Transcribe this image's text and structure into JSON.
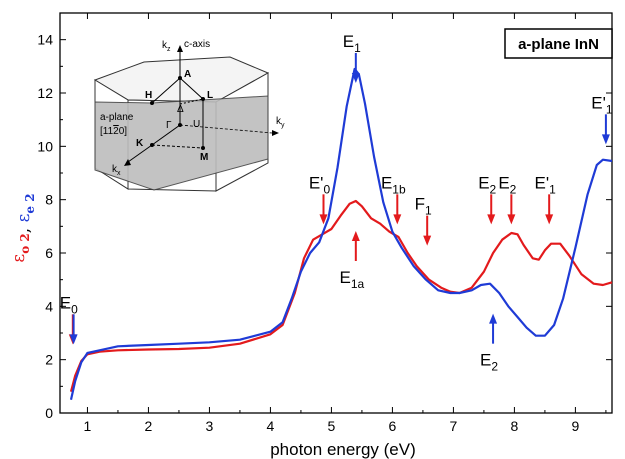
{
  "chart_data": {
    "type": "line",
    "title": "",
    "xlabel": "photon energy (eV)",
    "ylabel_parts": [
      {
        "text": "ε",
        "sub": "o 2",
        "color": "#e31a1c"
      },
      {
        "text": ", ",
        "sub": "",
        "color": "#000000"
      },
      {
        "text": "ε",
        "sub": "e 2",
        "color": "#1f3bd6"
      }
    ],
    "xlim": [
      0.55,
      9.6
    ],
    "ylim": [
      0,
      15
    ],
    "xticks": [
      1,
      2,
      3,
      4,
      5,
      6,
      7,
      8,
      9
    ],
    "yticks": [
      0,
      2,
      4,
      6,
      8,
      10,
      12,
      14
    ],
    "legend_box": "a-plane InN",
    "series": [
      {
        "color": "#e31a1c",
        "points": [
          [
            0.73,
            0.8
          ],
          [
            0.8,
            1.4
          ],
          [
            0.9,
            1.95
          ],
          [
            1.0,
            2.2
          ],
          [
            1.2,
            2.3
          ],
          [
            1.5,
            2.35
          ],
          [
            2.0,
            2.38
          ],
          [
            2.5,
            2.4
          ],
          [
            3.0,
            2.45
          ],
          [
            3.5,
            2.6
          ],
          [
            4.0,
            2.95
          ],
          [
            4.2,
            3.3
          ],
          [
            4.4,
            4.5
          ],
          [
            4.55,
            5.8
          ],
          [
            4.7,
            6.5
          ],
          [
            4.85,
            6.7
          ],
          [
            5.0,
            6.9
          ],
          [
            5.15,
            7.4
          ],
          [
            5.3,
            7.85
          ],
          [
            5.4,
            7.95
          ],
          [
            5.5,
            7.75
          ],
          [
            5.65,
            7.3
          ],
          [
            5.8,
            7.1
          ],
          [
            5.95,
            6.8
          ],
          [
            6.1,
            6.6
          ],
          [
            6.25,
            6.0
          ],
          [
            6.4,
            5.5
          ],
          [
            6.6,
            5.0
          ],
          [
            6.8,
            4.7
          ],
          [
            6.95,
            4.55
          ],
          [
            7.1,
            4.5
          ],
          [
            7.3,
            4.7
          ],
          [
            7.5,
            5.3
          ],
          [
            7.65,
            6.0
          ],
          [
            7.8,
            6.5
          ],
          [
            7.95,
            6.75
          ],
          [
            8.05,
            6.7
          ],
          [
            8.15,
            6.3
          ],
          [
            8.3,
            5.8
          ],
          [
            8.4,
            5.75
          ],
          [
            8.5,
            6.1
          ],
          [
            8.6,
            6.35
          ],
          [
            8.75,
            6.35
          ],
          [
            8.9,
            5.9
          ],
          [
            9.1,
            5.2
          ],
          [
            9.3,
            4.85
          ],
          [
            9.45,
            4.8
          ],
          [
            9.6,
            4.9
          ]
        ]
      },
      {
        "color": "#1f3bd6",
        "points": [
          [
            0.73,
            0.5
          ],
          [
            0.8,
            1.2
          ],
          [
            0.9,
            1.9
          ],
          [
            1.0,
            2.25
          ],
          [
            1.2,
            2.35
          ],
          [
            1.5,
            2.5
          ],
          [
            2.0,
            2.55
          ],
          [
            2.5,
            2.6
          ],
          [
            3.0,
            2.65
          ],
          [
            3.5,
            2.75
          ],
          [
            4.0,
            3.05
          ],
          [
            4.2,
            3.4
          ],
          [
            4.35,
            4.3
          ],
          [
            4.5,
            5.3
          ],
          [
            4.65,
            6.0
          ],
          [
            4.8,
            6.4
          ],
          [
            4.95,
            7.3
          ],
          [
            5.1,
            9.2
          ],
          [
            5.25,
            11.5
          ],
          [
            5.38,
            12.9
          ],
          [
            5.45,
            12.7
          ],
          [
            5.55,
            11.6
          ],
          [
            5.7,
            9.6
          ],
          [
            5.85,
            7.9
          ],
          [
            6.0,
            6.8
          ],
          [
            6.15,
            6.2
          ],
          [
            6.35,
            5.5
          ],
          [
            6.55,
            5.0
          ],
          [
            6.75,
            4.6
          ],
          [
            6.95,
            4.5
          ],
          [
            7.1,
            4.5
          ],
          [
            7.3,
            4.6
          ],
          [
            7.45,
            4.8
          ],
          [
            7.6,
            4.85
          ],
          [
            7.75,
            4.5
          ],
          [
            7.9,
            4.0
          ],
          [
            8.05,
            3.6
          ],
          [
            8.2,
            3.2
          ],
          [
            8.35,
            2.9
          ],
          [
            8.5,
            2.9
          ],
          [
            8.65,
            3.3
          ],
          [
            8.8,
            4.3
          ],
          [
            9.0,
            6.2
          ],
          [
            9.2,
            8.2
          ],
          [
            9.35,
            9.3
          ],
          [
            9.45,
            9.5
          ],
          [
            9.6,
            9.45
          ]
        ]
      }
    ],
    "annotations": [
      {
        "main": "E",
        "sub": "0",
        "x": 0.76,
        "y": 3.7,
        "label_above": true,
        "dir": "down",
        "color": "#e31a1c",
        "color2": "#1f3bd6"
      },
      {
        "main": "E",
        "sub": "1",
        "x": 5.4,
        "y": 13.5,
        "label_above": true,
        "dir": "down",
        "color": "#1f3bd6"
      },
      {
        "main": "E'",
        "sub": "0",
        "x": 4.87,
        "y": 8.2,
        "label_above": true,
        "dir": "down",
        "color": "#e31a1c"
      },
      {
        "main": "E",
        "sub": "1a",
        "x": 5.4,
        "y": 5.7,
        "label_above": false,
        "dir": "up",
        "color": "#e31a1c"
      },
      {
        "main": "E",
        "sub": "1b",
        "x": 6.08,
        "y": 8.2,
        "label_above": true,
        "dir": "down",
        "color": "#e31a1c"
      },
      {
        "main": "F",
        "sub": "1",
        "x": 6.57,
        "y": 7.4,
        "label_above": true,
        "dir": "down",
        "color": "#e31a1c"
      },
      {
        "main": "E",
        "sub": "2",
        "x": 7.62,
        "y": 8.2,
        "label_above": true,
        "dir": "down",
        "color": "#e31a1c"
      },
      {
        "main": "E",
        "sub": "2",
        "x": 7.95,
        "y": 8.2,
        "label_above": true,
        "dir": "down",
        "color": "#e31a1c"
      },
      {
        "main": "E'",
        "sub": "1",
        "x": 8.57,
        "y": 8.2,
        "label_above": true,
        "dir": "down",
        "color": "#e31a1c"
      },
      {
        "main": "E",
        "sub": "2",
        "x": 7.65,
        "y": 2.6,
        "label_above": false,
        "dir": "up",
        "color": "#1f3bd6"
      },
      {
        "main": "E'",
        "sub": "1",
        "x": 9.5,
        "y": 11.2,
        "label_above": true,
        "dir": "down",
        "color": "#1f3bd6"
      }
    ],
    "inset": {
      "labels": {
        "kz": "k",
        "kz_sub": "z",
        "caxis": "c-axis",
        "A": "A",
        "H": "H",
        "L": "L",
        "aplane1": "a-plane",
        "aplane2": "[11",
        "aplane2_bar": "2",
        "aplane2_end": "0]",
        "Gamma": "Γ",
        "Delta": "Δ",
        "U": "U",
        "K": "K",
        "M": "M",
        "ky": "k",
        "ky_sub": "y",
        "kx": "k",
        "kx_sub": "x"
      }
    }
  }
}
